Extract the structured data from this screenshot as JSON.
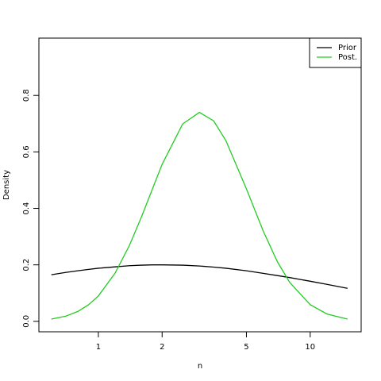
{
  "chart_data": {
    "type": "line",
    "x_label": "n",
    "y_label": "Density",
    "log_x": true,
    "x": [
      0.6,
      0.7,
      0.8,
      0.9,
      1,
      1.2,
      1.4,
      1.6,
      1.8,
      2,
      2.5,
      3,
      3.5,
      4,
      5,
      6,
      7,
      8,
      10,
      12,
      15
    ],
    "series": [
      {
        "name": "Prior",
        "color": "#000000",
        "values": [
          0.165,
          0.173,
          0.179,
          0.184,
          0.188,
          0.193,
          0.197,
          0.199,
          0.2,
          0.2,
          0.199,
          0.196,
          0.192,
          0.188,
          0.179,
          0.17,
          0.162,
          0.155,
          0.142,
          0.131,
          0.117
        ]
      },
      {
        "name": "Post.",
        "color": "#22cc22",
        "values": [
          0.008,
          0.018,
          0.035,
          0.059,
          0.09,
          0.171,
          0.268,
          0.371,
          0.469,
          0.556,
          0.699,
          0.74,
          0.71,
          0.64,
          0.469,
          0.32,
          0.211,
          0.138,
          0.059,
          0.026,
          0.008
        ]
      }
    ],
    "xlim": [
      0.524,
      17.4
    ],
    "xticks": [
      1,
      2,
      5,
      10
    ],
    "ylim": [
      -0.037,
      1.003
    ],
    "yticks": [
      {
        "value": 0,
        "label": "0.0"
      },
      0.2,
      0.4,
      0.6,
      0.8
    ],
    "legend": "top-right"
  }
}
